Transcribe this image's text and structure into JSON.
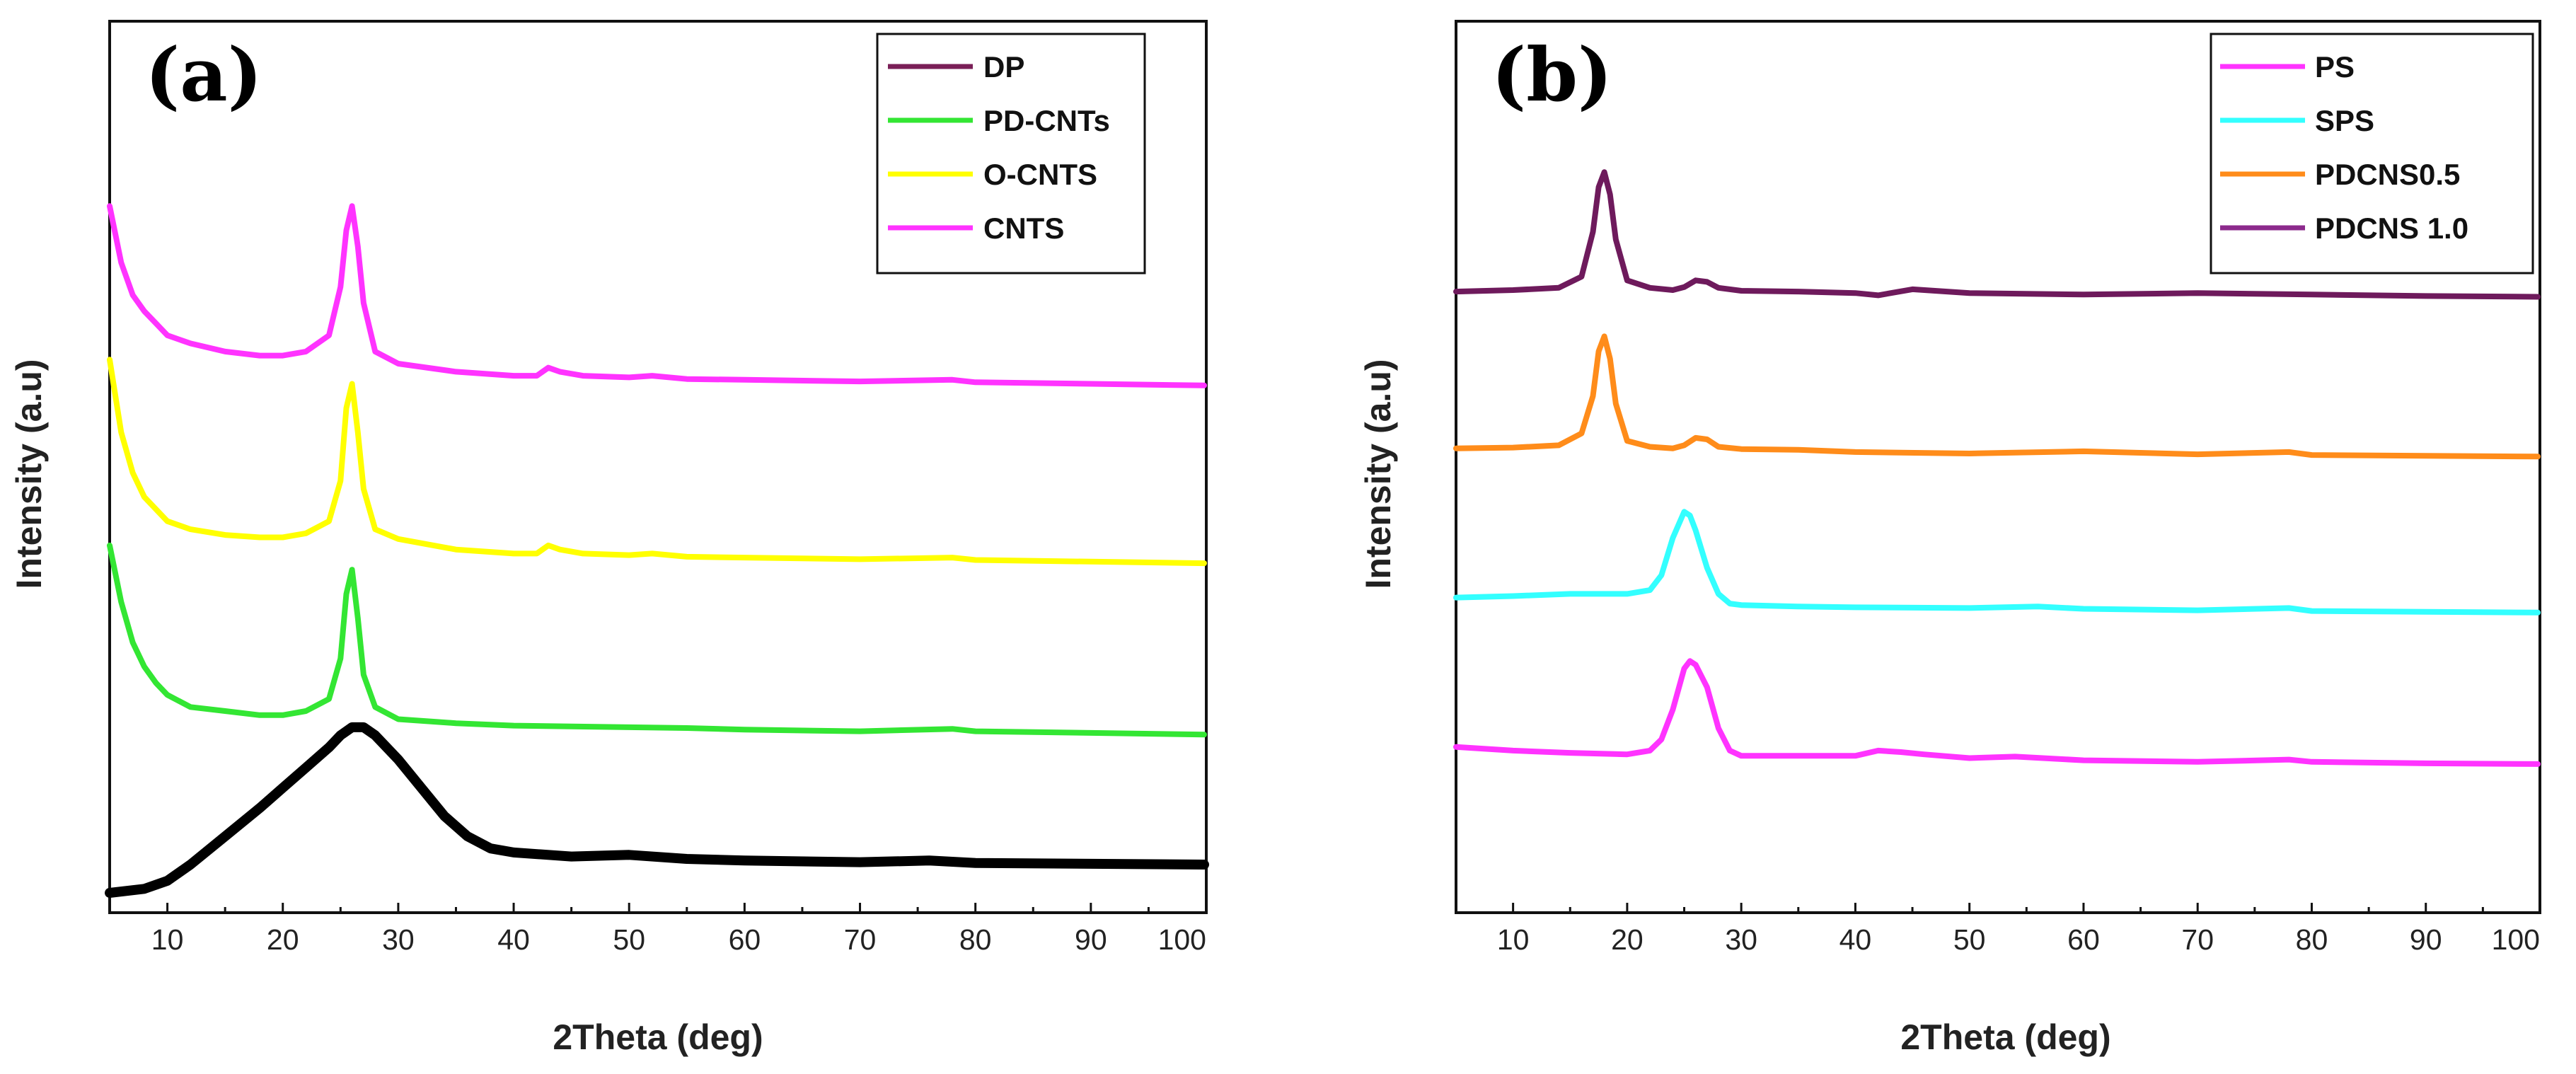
{
  "chart_data": [
    {
      "type": "line",
      "panel_label": "(a)",
      "xlabel": "2Theta (deg)",
      "ylabel": "Intensity (a.u)",
      "xlim": [
        5,
        100
      ],
      "ylim": [
        0,
        100
      ],
      "xticks": [
        10,
        20,
        30,
        40,
        50,
        60,
        70,
        80,
        90,
        100
      ],
      "y_ticks_labeled": false,
      "legend_position": "top-right",
      "legend": [
        {
          "name": "DP",
          "color": "#7a1f57"
        },
        {
          "name": "PD-CNTs",
          "color": "#33e633"
        },
        {
          "name": "O-CNTS",
          "color": "#ffff00"
        },
        {
          "name": "CNTS",
          "color": "#ff33ff"
        }
      ],
      "series": [
        {
          "name": "CNTS",
          "color": "#ff33ff",
          "x": [
            5,
            6,
            7,
            8,
            9,
            10,
            12,
            15,
            18,
            20,
            22,
            24,
            25,
            25.5,
            26,
            26.5,
            27,
            28,
            30,
            35,
            40,
            42,
            43,
            44,
            46,
            50,
            52,
            55,
            60,
            70,
            78,
            80,
            90,
            100
          ],
          "y": [
            85,
            78,
            74,
            72,
            70.5,
            69,
            68,
            67,
            66.5,
            66.5,
            67,
            69,
            75,
            82,
            85,
            80,
            73,
            67,
            65.5,
            64.5,
            64,
            64,
            65,
            64.5,
            64,
            63.8,
            64,
            63.6,
            63.5,
            63.3,
            63.5,
            63.2,
            63,
            62.8
          ]
        },
        {
          "name": "O-CNTS",
          "color": "#ffff00",
          "x": [
            5,
            6,
            7,
            8,
            9,
            10,
            12,
            15,
            18,
            20,
            22,
            24,
            25,
            25.5,
            26,
            26.5,
            27,
            28,
            30,
            35,
            40,
            42,
            43,
            44,
            46,
            50,
            52,
            55,
            60,
            70,
            78,
            80,
            90,
            100
          ],
          "y": [
            66,
            57,
            52,
            49,
            47.5,
            46,
            45,
            44.3,
            44,
            44,
            44.5,
            46,
            51,
            60,
            63,
            57,
            50,
            45,
            43.8,
            42.5,
            42,
            42,
            43,
            42.5,
            42,
            41.8,
            42,
            41.6,
            41.5,
            41.3,
            41.5,
            41.2,
            41,
            40.8
          ]
        },
        {
          "name": "PD-CNTs",
          "color": "#33e633",
          "x": [
            5,
            6,
            7,
            8,
            9,
            10,
            12,
            15,
            18,
            20,
            22,
            24,
            25,
            25.5,
            26,
            26.5,
            27,
            28,
            30,
            35,
            40,
            50,
            55,
            60,
            70,
            78,
            80,
            90,
            100
          ],
          "y": [
            43,
            36,
            31,
            28,
            26,
            24.5,
            23,
            22.5,
            22,
            22,
            22.5,
            24,
            29,
            37,
            40,
            34,
            27,
            23,
            21.5,
            21,
            20.7,
            20.5,
            20.4,
            20.2,
            20,
            20.3,
            20,
            19.8,
            19.6
          ]
        },
        {
          "name": "DP",
          "color": "#000000",
          "x": [
            5,
            8,
            10,
            12,
            15,
            18,
            20,
            22,
            24,
            25,
            26,
            27,
            28,
            30,
            32,
            34,
            36,
            38,
            40,
            45,
            50,
            55,
            60,
            70,
            76,
            80,
            90,
            100
          ],
          "y": [
            0,
            0.5,
            1.5,
            3.5,
            7,
            10.5,
            13,
            15.5,
            18,
            19.5,
            20.5,
            20.5,
            19.5,
            16.5,
            13,
            9.5,
            7,
            5.5,
            5,
            4.5,
            4.7,
            4.2,
            4,
            3.8,
            4,
            3.7,
            3.6,
            3.5
          ]
        }
      ]
    },
    {
      "type": "line",
      "panel_label": "(b)",
      "xlabel": "2Theta (deg)",
      "ylabel": "Intensity (a.u)",
      "xlim": [
        5,
        100
      ],
      "ylim": [
        0,
        100
      ],
      "xticks": [
        10,
        20,
        30,
        40,
        50,
        60,
        70,
        80,
        90,
        100
      ],
      "y_ticks_labeled": false,
      "legend_position": "top-right",
      "legend": [
        {
          "name": "PS",
          "color": "#ff33ff"
        },
        {
          "name": "SPS",
          "color": "#33ffff"
        },
        {
          "name": "PDCNS0.5",
          "color": "#ff8c1a"
        },
        {
          "name": "PDCNS 1.0",
          "color": "#8c2a8c"
        }
      ],
      "series": [
        {
          "name": "PDCNS 1.0",
          "color": "#6e1a5c",
          "x": [
            5,
            10,
            14,
            16,
            17,
            17.5,
            18,
            18.5,
            19,
            20,
            22,
            24,
            25,
            26,
            27,
            28,
            30,
            35,
            40,
            42,
            45,
            50,
            60,
            70,
            80,
            90,
            100
          ],
          "y": [
            78,
            78.2,
            78.5,
            80,
            86,
            92,
            94,
            91,
            85,
            79.5,
            78.5,
            78.2,
            78.6,
            79.5,
            79.3,
            78.5,
            78.1,
            78,
            77.8,
            77.5,
            78.3,
            77.8,
            77.6,
            77.8,
            77.6,
            77.4,
            77.3
          ]
        },
        {
          "name": "PDCNS0.5",
          "color": "#ff8c1a",
          "x": [
            5,
            10,
            14,
            16,
            17,
            17.5,
            18,
            18.5,
            19,
            20,
            22,
            24,
            25,
            26,
            27,
            28,
            30,
            35,
            40,
            50,
            60,
            70,
            78,
            80,
            90,
            100
          ],
          "y": [
            57,
            57.1,
            57.4,
            59,
            64,
            70,
            72,
            69,
            63,
            58,
            57.2,
            57,
            57.4,
            58.4,
            58.2,
            57.2,
            56.9,
            56.8,
            56.5,
            56.3,
            56.6,
            56.2,
            56.5,
            56.1,
            56,
            55.9
          ]
        },
        {
          "name": "SPS",
          "color": "#33ffff",
          "x": [
            5,
            10,
            15,
            20,
            22,
            23,
            24,
            25,
            25.5,
            26,
            27,
            28,
            29,
            30,
            35,
            40,
            50,
            56,
            60,
            70,
            78,
            80,
            90,
            100
          ],
          "y": [
            37,
            37.2,
            37.5,
            37.5,
            38,
            40,
            45,
            48.5,
            48,
            46,
            41,
            37.5,
            36.2,
            36,
            35.8,
            35.7,
            35.6,
            35.8,
            35.5,
            35.3,
            35.6,
            35.2,
            35.1,
            35
          ]
        },
        {
          "name": "PS",
          "color": "#ff33ff",
          "x": [
            5,
            10,
            15,
            20,
            22,
            23,
            24,
            25,
            25.5,
            26,
            27,
            28,
            29,
            30,
            35,
            40,
            42,
            44,
            46,
            50,
            54,
            60,
            70,
            78,
            80,
            90,
            100
          ],
          "y": [
            17,
            16.5,
            16.2,
            16,
            16.5,
            18,
            22,
            27.5,
            28.5,
            28,
            25,
            19.5,
            16.5,
            15.8,
            15.8,
            15.8,
            16.5,
            16.3,
            16,
            15.5,
            15.7,
            15.2,
            15,
            15.3,
            15,
            14.8,
            14.7
          ]
        }
      ]
    }
  ]
}
